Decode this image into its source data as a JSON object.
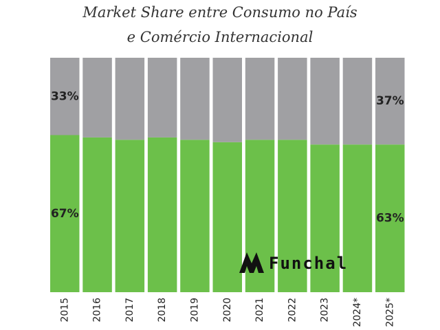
{
  "chart_data": {
    "type": "bar",
    "stacked": true,
    "title": "Market Share entre Consumo no País e Comércio Internacional",
    "title_lines": [
      "Market Share entre Consumo no País",
      "e Comércio Internacional"
    ],
    "categories": [
      "2015",
      "2016",
      "2017",
      "2018",
      "2019",
      "2020",
      "2021",
      "2022",
      "2023",
      "2024*",
      "2025*"
    ],
    "series": [
      {
        "values": [
          67,
          66,
          65,
          66,
          65,
          64,
          65,
          65,
          63,
          63,
          63
        ],
        "color": "#6cc04a"
      },
      {
        "values": [
          33,
          34,
          35,
          34,
          35,
          36,
          35,
          35,
          37,
          37,
          37
        ],
        "color": "#a0a0a3"
      }
    ],
    "data_labels": [
      {
        "category": "2015",
        "series": 0,
        "text": "67%"
      },
      {
        "category": "2015",
        "series": 1,
        "text": "33%"
      },
      {
        "category": "2025*",
        "series": 0,
        "text": "63%"
      },
      {
        "category": "2025*",
        "series": 1,
        "text": "37%"
      }
    ],
    "ylim": [
      0,
      100
    ],
    "xlabel": "",
    "ylabel": "",
    "grid": false,
    "legend": "none"
  },
  "logo": {
    "text": "Funchal",
    "icon": "funchal-peaks-icon"
  }
}
